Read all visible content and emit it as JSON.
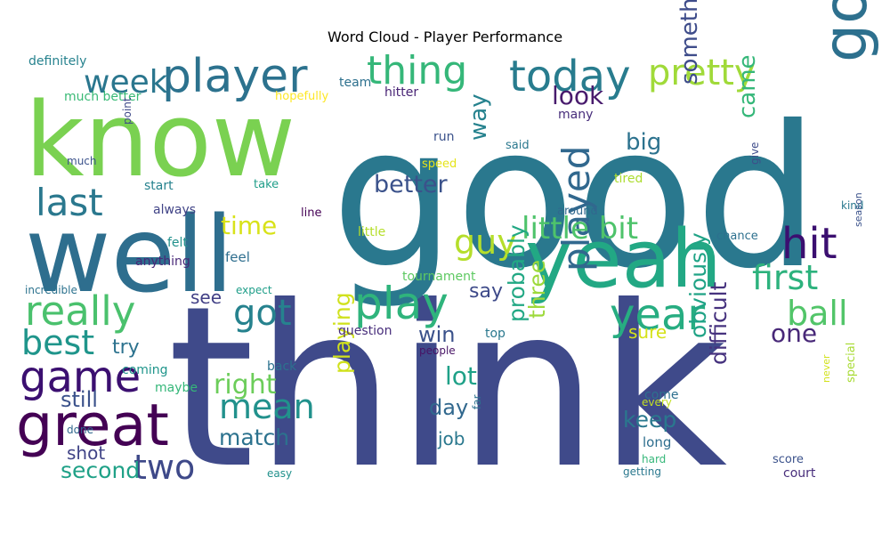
{
  "title": "Word Cloud - Player Performance",
  "words": [
    {
      "text": "think",
      "color": "#3f4a8a"
    },
    {
      "text": "good",
      "color": "#2a788e"
    },
    {
      "text": "well",
      "color": "#2e6e8e"
    },
    {
      "text": "know",
      "color": "#7ad151"
    },
    {
      "text": "yeah",
      "color": "#22a884"
    },
    {
      "text": "great",
      "color": "#440154"
    },
    {
      "text": "player",
      "color": "#2c728e"
    },
    {
      "text": "today",
      "color": "#287c8e"
    },
    {
      "text": "thing",
      "color": "#35b779"
    },
    {
      "text": "pretty",
      "color": "#a0da39"
    },
    {
      "text": "going",
      "color": "#2d708e"
    },
    {
      "text": "hit",
      "color": "#3b0f70"
    },
    {
      "text": "play",
      "color": "#2fb47c"
    },
    {
      "text": "really",
      "color": "#4ac16d"
    },
    {
      "text": "last",
      "color": "#2a788e"
    },
    {
      "text": "week",
      "color": "#2a768e"
    },
    {
      "text": "year",
      "color": "#27ad81"
    },
    {
      "text": "played",
      "color": "#31688e"
    },
    {
      "text": "game",
      "color": "#3b0f70"
    },
    {
      "text": "guy",
      "color": "#b5de2b"
    },
    {
      "text": "first",
      "color": "#2db27d"
    },
    {
      "text": "little bit",
      "color": "#4ec36b"
    },
    {
      "text": "got",
      "color": "#26828e"
    },
    {
      "text": "best",
      "color": "#1f958b"
    },
    {
      "text": "mean",
      "color": "#21918c"
    },
    {
      "text": "ball",
      "color": "#52c569"
    },
    {
      "text": "two",
      "color": "#3e4989"
    },
    {
      "text": "right",
      "color": "#6ccd5a"
    },
    {
      "text": "time",
      "color": "#d8e219"
    },
    {
      "text": "one",
      "color": "#482878"
    },
    {
      "text": "look",
      "color": "#481b6d"
    },
    {
      "text": "something",
      "color": "#3e4c8a"
    },
    {
      "text": "came",
      "color": "#35b779"
    },
    {
      "text": "better",
      "color": "#3b528b"
    },
    {
      "text": "way",
      "color": "#26828e"
    },
    {
      "text": "big",
      "color": "#2c728e"
    },
    {
      "text": "probably",
      "color": "#22a884"
    },
    {
      "text": "three",
      "color": "#9dd93b"
    },
    {
      "text": "playing",
      "color": "#d0e11c"
    },
    {
      "text": "obviously",
      "color": "#20a386"
    },
    {
      "text": "difficult",
      "color": "#46327e"
    },
    {
      "text": "lot",
      "color": "#1fa188"
    },
    {
      "text": "match",
      "color": "#2c728e"
    },
    {
      "text": "keep",
      "color": "#2a788e"
    },
    {
      "text": "second",
      "color": "#1fa187"
    },
    {
      "text": "still",
      "color": "#3b528b"
    },
    {
      "text": "win",
      "color": "#3b528b"
    },
    {
      "text": "day",
      "color": "#31688e"
    },
    {
      "text": "say",
      "color": "#3e4a89"
    },
    {
      "text": "try",
      "color": "#2c728e"
    },
    {
      "text": "job",
      "color": "#2a788e"
    },
    {
      "text": "sure",
      "color": "#d5e21a"
    },
    {
      "text": "see",
      "color": "#424086"
    },
    {
      "text": "shot",
      "color": "#414487"
    },
    {
      "text": "definitely",
      "color": "#26828e"
    },
    {
      "text": "much better",
      "color": "#3aba76"
    },
    {
      "text": "hopefully",
      "color": "#fde725"
    },
    {
      "text": "team",
      "color": "#2d708e"
    },
    {
      "text": "hitter",
      "color": "#482475"
    },
    {
      "text": "many",
      "color": "#472d7b"
    },
    {
      "text": "run",
      "color": "#3b528b"
    },
    {
      "text": "said",
      "color": "#2a788e"
    },
    {
      "text": "speed",
      "color": "#e5e419"
    },
    {
      "text": "tired",
      "color": "#addc30"
    },
    {
      "text": "point",
      "color": "#3e4989"
    },
    {
      "text": "much",
      "color": "#3b528b"
    },
    {
      "text": "start",
      "color": "#26828e"
    },
    {
      "text": "take",
      "color": "#1f9e89"
    },
    {
      "text": "give",
      "color": "#3e4c8a"
    },
    {
      "text": "always",
      "color": "#414487"
    },
    {
      "text": "line",
      "color": "#440154"
    },
    {
      "text": "around",
      "color": "#31688e"
    },
    {
      "text": "kind",
      "color": "#2a788e"
    },
    {
      "text": "felt",
      "color": "#21918c"
    },
    {
      "text": "little",
      "color": "#b5de2b"
    },
    {
      "text": "chance",
      "color": "#2d708e"
    },
    {
      "text": "season",
      "color": "#3b528b"
    },
    {
      "text": "anything",
      "color": "#482878"
    },
    {
      "text": "feel",
      "color": "#2e6e8e"
    },
    {
      "text": "tournament",
      "color": "#5ec962"
    },
    {
      "text": "incredible",
      "color": "#2c728e"
    },
    {
      "text": "expect",
      "color": "#1f9e89"
    },
    {
      "text": "question",
      "color": "#472d7b"
    },
    {
      "text": "top",
      "color": "#2a788e"
    },
    {
      "text": "coming",
      "color": "#1f958b"
    },
    {
      "text": "people",
      "color": "#471365"
    },
    {
      "text": "back",
      "color": "#2c728e"
    },
    {
      "text": "maybe",
      "color": "#35b779"
    },
    {
      "text": "every",
      "color": "#c2df23"
    },
    {
      "text": "come",
      "color": "#2d708e"
    },
    {
      "text": "never",
      "color": "#d2e21b"
    },
    {
      "text": "special",
      "color": "#a8db34"
    },
    {
      "text": "done",
      "color": "#31688e"
    },
    {
      "text": "far",
      "color": "#2c728e"
    },
    {
      "text": "long",
      "color": "#2e6e8e"
    },
    {
      "text": "hard",
      "color": "#35b779"
    },
    {
      "text": "score",
      "color": "#3b528b"
    },
    {
      "text": "easy",
      "color": "#21918c"
    },
    {
      "text": "getting",
      "color": "#2a788e"
    },
    {
      "text": "court",
      "color": "#472d7b"
    }
  ]
}
